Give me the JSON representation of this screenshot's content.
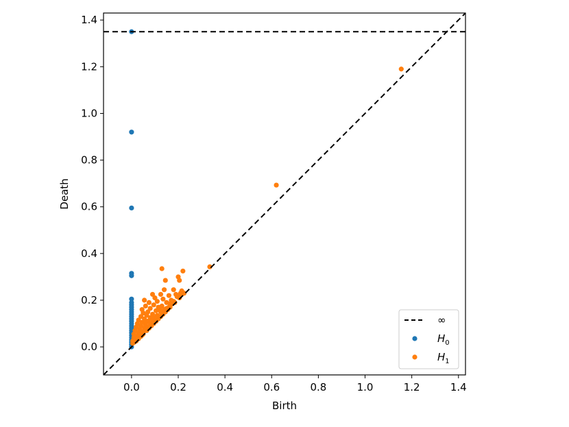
{
  "chart_data": {
    "type": "scatter",
    "xlabel": "Birth",
    "ylabel": "Death",
    "xlim": [
      -0.12,
      1.43
    ],
    "ylim": [
      -0.12,
      1.43
    ],
    "xticks": [
      "0.0",
      "0.2",
      "0.4",
      "0.6",
      "0.8",
      "1.0",
      "1.2",
      "1.4"
    ],
    "yticks": [
      "0.0",
      "0.2",
      "0.4",
      "0.6",
      "0.8",
      "1.0",
      "1.2",
      "1.4"
    ],
    "infinity_level": 1.35,
    "legend_position": "lower-right",
    "legend": [
      {
        "label": "∞",
        "kind": "dashed-line",
        "color": "#000000"
      },
      {
        "label": "H",
        "subscript": "0",
        "kind": "marker",
        "color": "#1f77b4"
      },
      {
        "label": "H",
        "subscript": "1",
        "kind": "marker",
        "color": "#ff7f0e"
      }
    ],
    "series": [
      {
        "name": "H0",
        "color": "#1f77b4",
        "points": [
          [
            0,
            1.35
          ],
          [
            0,
            0.92
          ],
          [
            0,
            0.595
          ],
          [
            0,
            0.315
          ],
          [
            0,
            0.305
          ],
          [
            0,
            0.205
          ],
          [
            0,
            0.19
          ],
          [
            0,
            0.18
          ],
          [
            0,
            0.17
          ],
          [
            0,
            0.16
          ],
          [
            0,
            0.15
          ],
          [
            0,
            0.14
          ],
          [
            0,
            0.13
          ],
          [
            0,
            0.12
          ],
          [
            0,
            0.11
          ],
          [
            0,
            0.1
          ],
          [
            0,
            0.09
          ],
          [
            0,
            0.08
          ],
          [
            0,
            0.07
          ],
          [
            0,
            0.06
          ],
          [
            0,
            0.05
          ],
          [
            0,
            0.04
          ],
          [
            0,
            0.03
          ],
          [
            0,
            0.02
          ],
          [
            0,
            0.01
          ],
          [
            0,
            0.0
          ]
        ]
      },
      {
        "name": "H1",
        "color": "#ff7f0e",
        "points": [
          [
            1.155,
            1.19
          ],
          [
            0.62,
            0.693
          ],
          [
            0.335,
            0.343
          ],
          [
            0.13,
            0.335
          ],
          [
            0.22,
            0.325
          ],
          [
            0.2,
            0.3
          ],
          [
            0.205,
            0.285
          ],
          [
            0.145,
            0.285
          ],
          [
            0.14,
            0.245
          ],
          [
            0.18,
            0.245
          ],
          [
            0.215,
            0.24
          ],
          [
            0.09,
            0.225
          ],
          [
            0.125,
            0.225
          ],
          [
            0.16,
            0.22
          ],
          [
            0.055,
            0.2
          ],
          [
            0.1,
            0.21
          ],
          [
            0.135,
            0.205
          ],
          [
            0.17,
            0.2
          ],
          [
            0.195,
            0.215
          ],
          [
            0.075,
            0.19
          ],
          [
            0.11,
            0.195
          ],
          [
            0.15,
            0.19
          ],
          [
            0.06,
            0.175
          ],
          [
            0.095,
            0.18
          ],
          [
            0.13,
            0.175
          ],
          [
            0.165,
            0.185
          ],
          [
            0.045,
            0.16
          ],
          [
            0.08,
            0.165
          ],
          [
            0.115,
            0.17
          ],
          [
            0.14,
            0.16
          ],
          [
            0.05,
            0.145
          ],
          [
            0.07,
            0.15
          ],
          [
            0.105,
            0.155
          ],
          [
            0.125,
            0.15
          ],
          [
            0.16,
            0.17
          ],
          [
            0.04,
            0.13
          ],
          [
            0.065,
            0.135
          ],
          [
            0.09,
            0.14
          ],
          [
            0.11,
            0.135
          ],
          [
            0.03,
            0.115
          ],
          [
            0.055,
            0.12
          ],
          [
            0.08,
            0.125
          ],
          [
            0.1,
            0.125
          ],
          [
            0.12,
            0.13
          ],
          [
            0.025,
            0.1
          ],
          [
            0.045,
            0.105
          ],
          [
            0.07,
            0.11
          ],
          [
            0.09,
            0.115
          ],
          [
            0.02,
            0.085
          ],
          [
            0.04,
            0.09
          ],
          [
            0.06,
            0.095
          ],
          [
            0.08,
            0.1
          ],
          [
            0.015,
            0.07
          ],
          [
            0.035,
            0.075
          ],
          [
            0.055,
            0.08
          ],
          [
            0.07,
            0.085
          ],
          [
            0.01,
            0.055
          ],
          [
            0.03,
            0.06
          ],
          [
            0.045,
            0.065
          ],
          [
            0.06,
            0.07
          ],
          [
            0.01,
            0.04
          ],
          [
            0.02,
            0.045
          ],
          [
            0.035,
            0.05
          ],
          [
            0.05,
            0.055
          ],
          [
            0.005,
            0.025
          ],
          [
            0.015,
            0.03
          ],
          [
            0.025,
            0.035
          ],
          [
            0.04,
            0.045
          ],
          [
            0.005,
            0.015
          ],
          [
            0.012,
            0.02
          ],
          [
            0.02,
            0.025
          ],
          [
            0.03,
            0.035
          ],
          [
            0.045,
            0.05
          ],
          [
            0.065,
            0.07
          ],
          [
            0.085,
            0.09
          ],
          [
            0.105,
            0.11
          ],
          [
            0.125,
            0.13
          ],
          [
            0.145,
            0.15
          ],
          [
            0.165,
            0.17
          ],
          [
            0.185,
            0.19
          ],
          [
            0.205,
            0.21
          ],
          [
            0.225,
            0.23
          ],
          [
            0.1,
            0.11
          ],
          [
            0.15,
            0.165
          ],
          [
            0.18,
            0.195
          ],
          [
            0.2,
            0.215
          ],
          [
            0.215,
            0.225
          ],
          [
            0.175,
            0.185
          ],
          [
            0.155,
            0.16
          ],
          [
            0.135,
            0.14
          ],
          [
            0.115,
            0.12
          ],
          [
            0.095,
            0.1
          ],
          [
            0.075,
            0.08
          ],
          [
            0.19,
            0.225
          ],
          [
            0.21,
            0.23
          ],
          [
            0.12,
            0.16
          ],
          [
            0.09,
            0.13
          ],
          [
            0.06,
            0.11
          ]
        ]
      }
    ]
  }
}
